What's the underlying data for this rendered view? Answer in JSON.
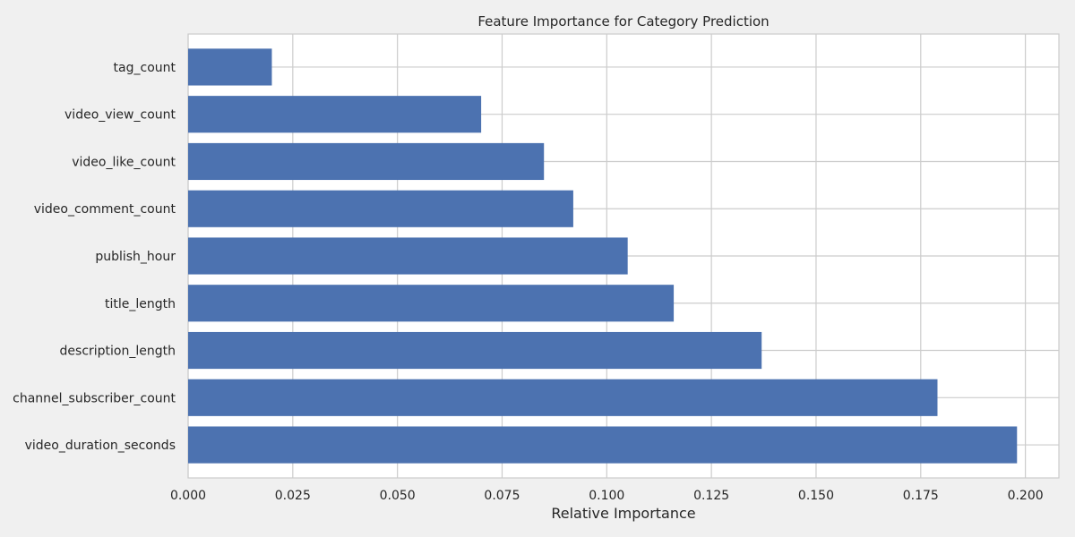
{
  "chart_data": {
    "type": "bar",
    "orientation": "horizontal",
    "title": "Feature Importance for Category Prediction",
    "xlabel": "Relative Importance",
    "ylabel": "",
    "categories": [
      "video_duration_seconds",
      "channel_subscriber_count",
      "description_length",
      "title_length",
      "publish_hour",
      "video_comment_count",
      "video_like_count",
      "video_view_count",
      "tag_count"
    ],
    "values": [
      0.198,
      0.179,
      0.137,
      0.116,
      0.105,
      0.092,
      0.085,
      0.07,
      0.02
    ],
    "xlim": [
      0.0,
      0.208
    ],
    "xticks": [
      0.0,
      0.025,
      0.05,
      0.075,
      0.1,
      0.125,
      0.15,
      0.175,
      0.2
    ],
    "xtick_labels": [
      "0.000",
      "0.025",
      "0.050",
      "0.075",
      "0.100",
      "0.125",
      "0.150",
      "0.175",
      "0.200"
    ],
    "grid": true,
    "colors": {
      "bar": "#4c72b0",
      "plot_background": "#ffffff",
      "figure_background": "#f0f0f0",
      "grid": "#cccccc",
      "text": "#262626"
    }
  }
}
